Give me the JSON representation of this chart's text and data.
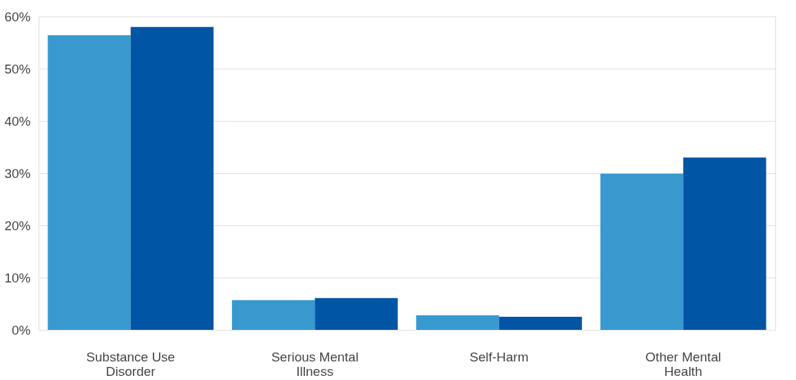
{
  "chart_data": {
    "type": "bar",
    "categories": [
      "Substance Use Disorder",
      "Serious Mental Illness",
      "Self-Harm",
      "Other Mental Health"
    ],
    "series": [
      {
        "color": "#3899cf",
        "values": [
          56.4,
          5.7,
          2.8,
          29.9
        ]
      },
      {
        "color": "#0055a5",
        "values": [
          58.0,
          6.1,
          2.5,
          33.0
        ]
      }
    ],
    "ylim": [
      0,
      60
    ],
    "yticks": [
      {
        "value": 0,
        "label": "0%"
      },
      {
        "value": 10,
        "label": "10%"
      },
      {
        "value": 20,
        "label": "20%"
      },
      {
        "value": 30,
        "label": "30%"
      },
      {
        "value": 40,
        "label": "40%"
      },
      {
        "value": 50,
        "label": "50%"
      },
      {
        "value": 60,
        "label": "60%"
      }
    ],
    "grid": "y",
    "legend": false
  }
}
